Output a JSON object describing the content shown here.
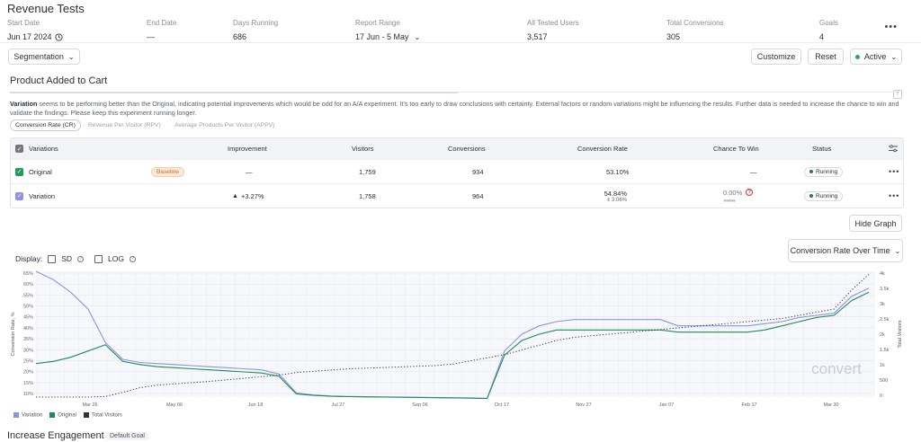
{
  "page_title": "Revenue Tests",
  "stats": [
    {
      "label": "Start Date",
      "value": "Jun 17 2024"
    },
    {
      "label": "End Date",
      "value": "—"
    },
    {
      "label": "Days Running",
      "value": "686"
    },
    {
      "label": "Report Range",
      "value": "17 Jun - 5 May"
    },
    {
      "label": "All Tested Users",
      "value": "3,517"
    },
    {
      "label": "Total Conversions",
      "value": "305"
    },
    {
      "label": "Goals",
      "value": "4"
    }
  ],
  "toolbar": {
    "segmentation": "Segmentation",
    "customize": "Customize",
    "reset": "Reset",
    "status": "Active"
  },
  "goal_section": {
    "title": "Product Added to Cart",
    "desc_bold": "Variation",
    "desc_text": " seems to be performing better than the Original, indicating potential improvements which would be odd for an A/A experiment. It's too early to draw conclusions with certainty. External factors or random variations might be influencing the results. Further data is needed to increase the chance to win and validate the findings. Please keep this experiment running longer.",
    "tabs": [
      "Conversion Rate (CR)",
      "Revenue Per Visitor (RPV)",
      "Average Products Per Visitor (APPV)"
    ]
  },
  "table": {
    "headers": [
      "Variations",
      "Improvement",
      "Visitors",
      "Conversions",
      "Conversion Rate",
      "Chance To Win",
      "Status"
    ],
    "rows": [
      {
        "name": "Original",
        "badge": "Baseline",
        "improvement": "—",
        "visitors": "1,759",
        "conversions": "934",
        "rate": "53.10%",
        "rate_sub": "",
        "chance": "—",
        "status": "Running",
        "color": "#1f9d55"
      },
      {
        "name": "Variation",
        "badge": "",
        "improvement": "+3.27%",
        "visitors": "1,758",
        "conversions": "964",
        "rate": "54.84%",
        "rate_sub": "± 3.06%",
        "chance": "0.00%",
        "status": "Running",
        "color": "#7f8ee0"
      }
    ]
  },
  "graph_controls": {
    "hide_graph": "Hide Graph",
    "display_label": "Display:",
    "sd": "SD",
    "log": "LOG",
    "mode": "Conversion Rate Over Time"
  },
  "chart_data": {
    "type": "line",
    "ylabel": "Conversion Rate, %",
    "y2label": "Total Visitors",
    "ylim": [
      8,
      68
    ],
    "y2lim": [
      0,
      4000
    ],
    "yticks": [
      "65%",
      "60%",
      "55%",
      "50%",
      "45%",
      "40%",
      "35%",
      "30%",
      "25%",
      "20%",
      "15%",
      "10%"
    ],
    "y2ticks": [
      "4k",
      "3.5k",
      "3k",
      "2.5k",
      "2k",
      "1.5k",
      "1k",
      "500",
      "0"
    ],
    "xticks": [
      "Mar 26",
      "May 06",
      "Jun 18",
      "Jul 27",
      "Sep 06",
      "Oct 17",
      "Nov 27",
      "Jan 07",
      "Feb 17",
      "Mar 30"
    ],
    "grid": true,
    "legend": "bottom-left",
    "watermark": "convert",
    "series": [
      {
        "name": "Variation",
        "color": "#8b93e6",
        "values": [
          68,
          64,
          58,
          50,
          34,
          26,
          24.5,
          24,
          23.5,
          23,
          22.5,
          22,
          21.5,
          21,
          19,
          10,
          9,
          8.5,
          8.3,
          8.2,
          8.1,
          8,
          7.9,
          7.8,
          7.7,
          7.6,
          7.4,
          30,
          38,
          42,
          44,
          45,
          45,
          45,
          45,
          45,
          45,
          42,
          42,
          42,
          42,
          42,
          43,
          44,
          46,
          47,
          48,
          56,
          60
        ]
      },
      {
        "name": "Original",
        "color": "#1f8a5a",
        "values": [
          24,
          25,
          27,
          30,
          33,
          25,
          23.5,
          22.5,
          22,
          21.5,
          21,
          20.5,
          20,
          19.5,
          18,
          9.5,
          8.8,
          8.4,
          8.2,
          8.1,
          8,
          7.9,
          7.8,
          7.7,
          7.6,
          7.5,
          7.3,
          28,
          35,
          38,
          40,
          40,
          40,
          40,
          40,
          40,
          40,
          39,
          39,
          39,
          39,
          39,
          40,
          42,
          44,
          46,
          47,
          54,
          58
        ]
      },
      {
        "name": "Total Visitors",
        "color": "#333333",
        "dashed": true,
        "values": [
          0,
          0,
          0,
          0,
          20,
          150,
          300,
          380,
          420,
          460,
          500,
          550,
          600,
          650,
          700,
          780,
          820,
          860,
          900,
          920,
          940,
          960,
          980,
          1000,
          1050,
          1150,
          1250,
          1350,
          1500,
          1650,
          1800,
          1900,
          1950,
          2000,
          2050,
          2100,
          2150,
          2200,
          2250,
          2300,
          2350,
          2400,
          2450,
          2500,
          2600,
          2700,
          2800,
          3400,
          3900
        ]
      }
    ]
  },
  "bottom": {
    "title": "Increase Engagement",
    "badge": "Default Goal"
  }
}
